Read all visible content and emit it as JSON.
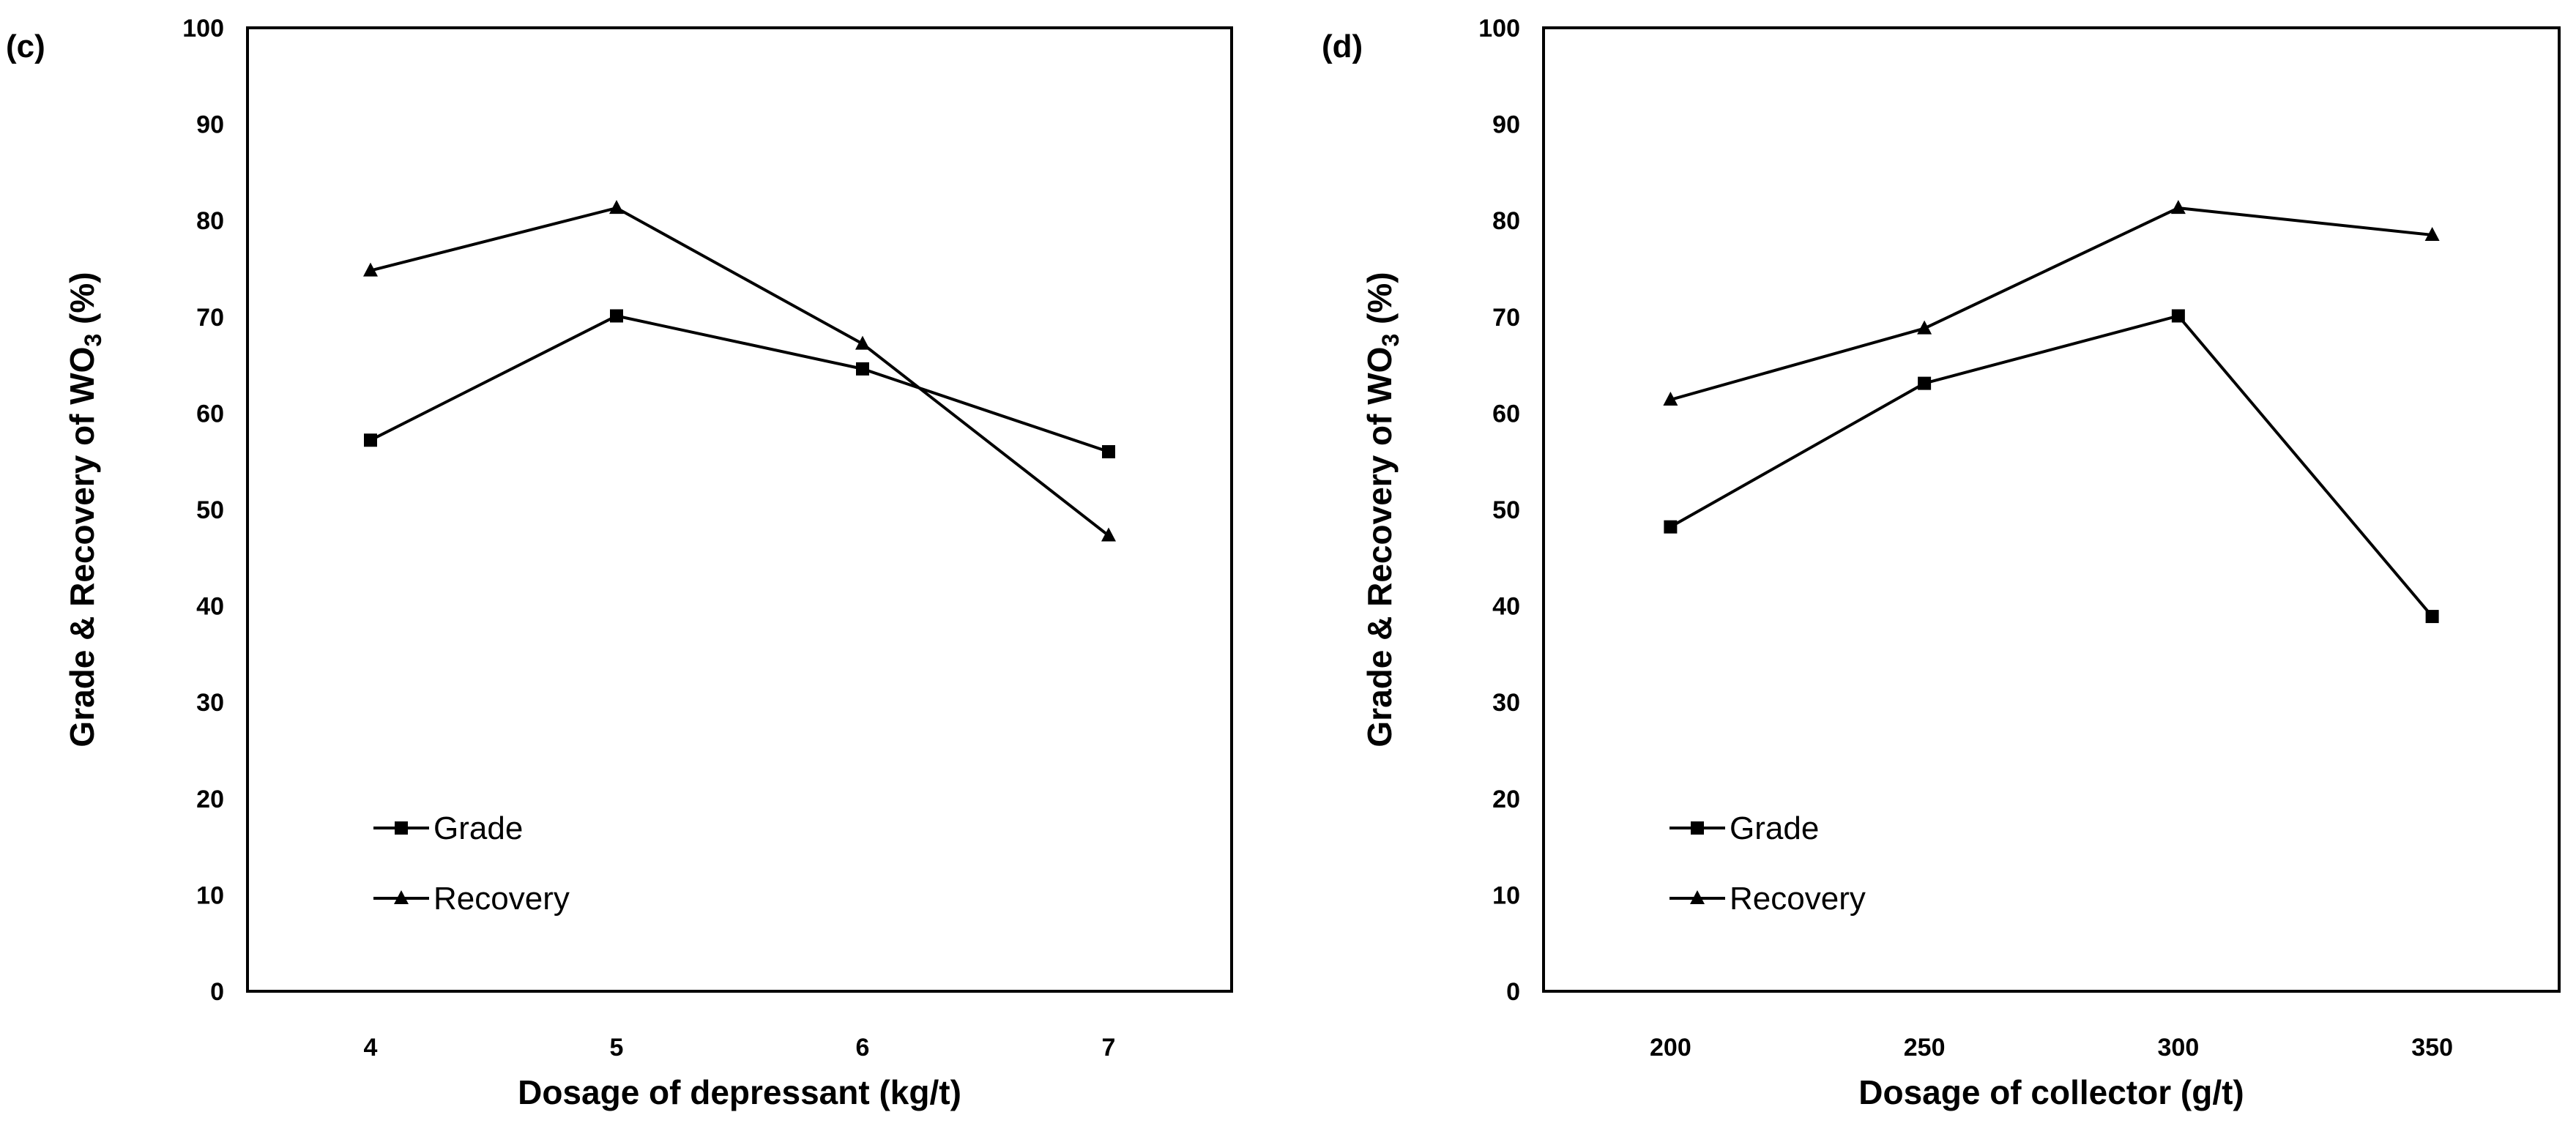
{
  "chart_data": [
    {
      "type": "line",
      "panel_label": "(c)",
      "xlabel": "Dosage of depressant (kg/t)",
      "ylabel": {
        "main": "Grade & Recovery of WO",
        "subscript": "3",
        "suffix": " (%)"
      },
      "categories": [
        "4",
        "5",
        "6",
        "7"
      ],
      "ylim": [
        0,
        100
      ],
      "yticks": [
        "0",
        "10",
        "20",
        "30",
        "40",
        "50",
        "60",
        "70",
        "80",
        "90",
        "100"
      ],
      "grid": false,
      "legend_position": "bottom-left",
      "series": [
        {
          "name": "Grade",
          "marker": "square",
          "values": [
            57.2,
            70.1,
            64.6,
            56.0
          ]
        },
        {
          "name": "Recovery",
          "marker": "triangle",
          "values": [
            74.8,
            81.3,
            67.2,
            47.3
          ]
        }
      ]
    },
    {
      "type": "line",
      "panel_label": "(d)",
      "xlabel": "Dosage of collector (g/t)",
      "ylabel": {
        "main": "Grade & Recovery of WO",
        "subscript": "3",
        "suffix": " (%)"
      },
      "categories": [
        "200",
        "250",
        "300",
        "350"
      ],
      "ylim": [
        0,
        100
      ],
      "yticks": [
        "0",
        "10",
        "20",
        "30",
        "40",
        "50",
        "60",
        "70",
        "80",
        "90",
        "100"
      ],
      "grid": false,
      "legend_position": "bottom-left",
      "series": [
        {
          "name": "Grade",
          "marker": "square",
          "values": [
            48.2,
            63.1,
            70.1,
            38.9
          ]
        },
        {
          "name": "Recovery",
          "marker": "triangle",
          "values": [
            61.4,
            68.8,
            81.3,
            78.5
          ]
        }
      ]
    }
  ]
}
